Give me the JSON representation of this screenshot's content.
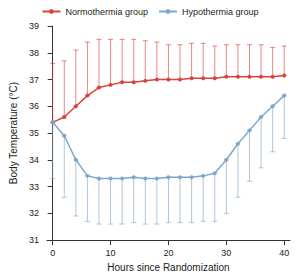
{
  "chart_data": {
    "type": "line",
    "x_label": "Hours since Randomization",
    "y_label": "Body Temperature (°C)",
    "x": [
      0,
      2,
      4,
      6,
      8,
      10,
      12,
      14,
      16,
      18,
      20,
      22,
      24,
      26,
      28,
      30,
      32,
      34,
      36,
      38,
      40
    ],
    "series": [
      {
        "name": "Normothermia group",
        "color": "#d9453d",
        "marker": "circle",
        "values": [
          35.4,
          35.6,
          36.0,
          36.4,
          36.7,
          36.8,
          36.9,
          36.9,
          36.95,
          37.0,
          37.0,
          37.0,
          37.05,
          37.05,
          37.05,
          37.1,
          37.1,
          37.1,
          37.1,
          37.1,
          37.15
        ],
        "error_upper": [
          2.2,
          2.1,
          2.1,
          2.0,
          1.8,
          1.7,
          1.6,
          1.6,
          1.5,
          1.4,
          1.3,
          1.3,
          1.3,
          1.3,
          1.2,
          1.2,
          1.2,
          1.2,
          1.2,
          1.1,
          1.1
        ]
      },
      {
        "name": "Hypothermia group",
        "color": "#7fa7c9",
        "marker": "circle",
        "values": [
          35.4,
          34.9,
          34.0,
          33.4,
          33.3,
          33.3,
          33.3,
          33.35,
          33.3,
          33.3,
          33.35,
          33.35,
          33.35,
          33.4,
          33.5,
          34.0,
          34.6,
          35.1,
          35.6,
          36.0,
          36.4
        ],
        "error_lower": [
          2.1,
          2.3,
          2.1,
          1.7,
          1.7,
          1.7,
          1.7,
          1.7,
          1.7,
          1.7,
          1.7,
          1.7,
          1.7,
          1.7,
          1.8,
          2.0,
          2.0,
          1.9,
          1.9,
          1.7,
          1.6
        ]
      }
    ],
    "xlim": [
      -1,
      41
    ],
    "xticks": [
      0,
      10,
      20,
      30,
      40
    ],
    "ylim": [
      31,
      39
    ],
    "yticks": [
      31,
      32,
      33,
      34,
      35,
      36,
      37,
      38,
      39
    ],
    "grid": false,
    "legend": "top"
  }
}
